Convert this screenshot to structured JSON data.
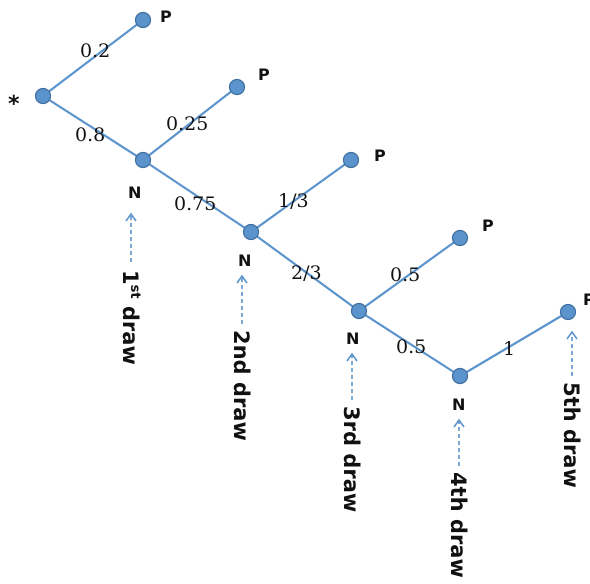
{
  "root_marker": "*",
  "outcome_labels": {
    "positive": "P",
    "negative": "N"
  },
  "edges": [
    {
      "from": "draw1",
      "to": "p1",
      "label": "0.2"
    },
    {
      "from": "draw1",
      "to": "draw2",
      "label": "0.8"
    },
    {
      "from": "draw2",
      "to": "p2",
      "label": "0.25"
    },
    {
      "from": "draw2",
      "to": "draw3",
      "label": "0.75"
    },
    {
      "from": "draw3",
      "to": "p3",
      "label": "1/3"
    },
    {
      "from": "draw3",
      "to": "draw4",
      "label": "2/3"
    },
    {
      "from": "draw4",
      "to": "p4",
      "label": "0.5"
    },
    {
      "from": "draw4",
      "to": "draw5",
      "label": "0.5"
    },
    {
      "from": "draw5",
      "to": "p5",
      "label": "1"
    }
  ],
  "draws": [
    {
      "prefix": "1",
      "sup": "st",
      "suffix": " draw"
    },
    {
      "prefix": "2nd draw",
      "sup": "",
      "suffix": ""
    },
    {
      "prefix": "3rd draw",
      "sup": "",
      "suffix": ""
    },
    {
      "prefix": "4th draw",
      "sup": "",
      "suffix": ""
    },
    {
      "prefix": "5th draw",
      "sup": "",
      "suffix": ""
    }
  ],
  "colors": {
    "node": "#5b93cc",
    "edge": "#5b93cc",
    "text": "#111111"
  }
}
